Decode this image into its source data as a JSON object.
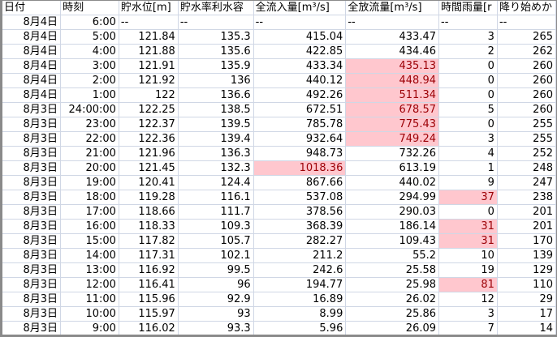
{
  "headers": [
    "日付",
    "時刻",
    "貯水位[m]",
    "貯水率利水容",
    "全流入量[m³/s]",
    "全放流量[m³/s]",
    "時間雨量[r",
    "降り始めか"
  ],
  "rows": [
    {
      "cells": [
        "8月4日",
        "6:00",
        "--",
        "--",
        "--",
        "--",
        "--",
        "--"
      ],
      "highlight": []
    },
    {
      "cells": [
        "8月4日",
        "5:00",
        "121.84",
        "135.3",
        "415.04",
        "433.47",
        "3",
        "265"
      ],
      "highlight": []
    },
    {
      "cells": [
        "8月4日",
        "4:00",
        "121.88",
        "135.6",
        "422.85",
        "434.46",
        "2",
        "262"
      ],
      "highlight": []
    },
    {
      "cells": [
        "8月4日",
        "3:00",
        "121.91",
        "135.9",
        "433.34",
        "435.13",
        "0",
        "260"
      ],
      "highlight": [
        5
      ]
    },
    {
      "cells": [
        "8月4日",
        "2:00",
        "121.92",
        "136",
        "440.12",
        "448.94",
        "0",
        "260"
      ],
      "highlight": [
        5
      ]
    },
    {
      "cells": [
        "8月4日",
        "1:00",
        "122",
        "136.6",
        "492.26",
        "511.34",
        "0",
        "260"
      ],
      "highlight": [
        5
      ]
    },
    {
      "cells": [
        "8月3日",
        "24:00:00",
        "122.25",
        "138.5",
        "672.51",
        "678.57",
        "5",
        "260"
      ],
      "highlight": [
        5
      ]
    },
    {
      "cells": [
        "8月3日",
        "23:00",
        "122.37",
        "139.5",
        "785.78",
        "775.43",
        "0",
        "255"
      ],
      "highlight": [
        5
      ]
    },
    {
      "cells": [
        "8月3日",
        "22:00",
        "122.36",
        "139.4",
        "932.64",
        "749.24",
        "3",
        "255"
      ],
      "highlight": [
        5
      ]
    },
    {
      "cells": [
        "8月3日",
        "21:00",
        "121.96",
        "136.3",
        "948.73",
        "732.26",
        "4",
        "252"
      ],
      "highlight": []
    },
    {
      "cells": [
        "8月3日",
        "20:00",
        "121.45",
        "132.3",
        "1018.36",
        "613.19",
        "1",
        "248"
      ],
      "highlight": [
        4
      ]
    },
    {
      "cells": [
        "8月3日",
        "19:00",
        "120.41",
        "124.4",
        "867.66",
        "440.02",
        "9",
        "247"
      ],
      "highlight": []
    },
    {
      "cells": [
        "8月3日",
        "18:00",
        "119.28",
        "116.1",
        "537.08",
        "294.99",
        "37",
        "238"
      ],
      "highlight": [
        6
      ]
    },
    {
      "cells": [
        "8月3日",
        "17:00",
        "118.66",
        "111.7",
        "378.56",
        "290.03",
        "0",
        "201"
      ],
      "highlight": []
    },
    {
      "cells": [
        "8月3日",
        "16:00",
        "118.33",
        "109.3",
        "368.39",
        "186.14",
        "31",
        "201"
      ],
      "highlight": [
        6
      ]
    },
    {
      "cells": [
        "8月3日",
        "15:00",
        "117.82",
        "105.7",
        "282.27",
        "109.43",
        "31",
        "170"
      ],
      "highlight": [
        6
      ]
    },
    {
      "cells": [
        "8月3日",
        "14:00",
        "117.31",
        "102.1",
        "211.2",
        "55.2",
        "10",
        "139"
      ],
      "highlight": []
    },
    {
      "cells": [
        "8月3日",
        "13:00",
        "116.92",
        "99.5",
        "242.6",
        "25.58",
        "19",
        "129"
      ],
      "highlight": []
    },
    {
      "cells": [
        "8月3日",
        "12:00",
        "116.41",
        "96",
        "194.77",
        "25.98",
        "81",
        "110"
      ],
      "highlight": [
        6
      ]
    },
    {
      "cells": [
        "8月3日",
        "11:00",
        "115.96",
        "92.9",
        "16.89",
        "26.02",
        "12",
        "29"
      ],
      "highlight": []
    },
    {
      "cells": [
        "8月3日",
        "10:00",
        "115.97",
        "93",
        "8.99",
        "25.86",
        "3",
        "17"
      ],
      "highlight": []
    },
    {
      "cells": [
        "8月3日",
        "9:00",
        "116.02",
        "93.3",
        "5.96",
        "26.09",
        "7",
        "14"
      ],
      "highlight": []
    }
  ],
  "colors": {
    "highlight_bg": "#ffc7ce",
    "highlight_text": "#9c0006",
    "gridline": "#d0d7e5"
  }
}
